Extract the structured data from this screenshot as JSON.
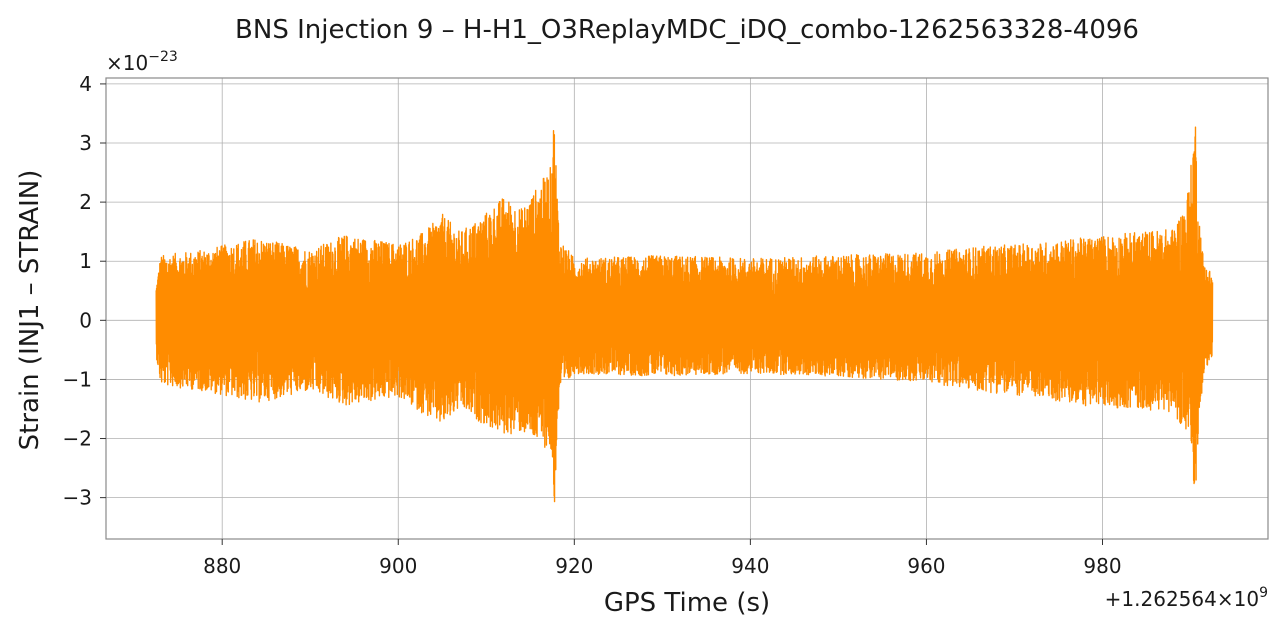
{
  "chart_data": {
    "type": "line",
    "title": "BNS Injection 9 – H-H1_O3ReplayMDC_iDQ_combo-1262563328-4096",
    "xlabel": "GPS Time (s)",
    "ylabel": "Strain (INJ1 – STRAIN)",
    "x_offset_label": "+1.262564×10",
    "x_offset_exponent": "9",
    "y_scale_label": "×10",
    "y_scale_exponent": "−23",
    "xlim": [
      866.8,
      998.8
    ],
    "ylim": [
      -3.7,
      4.1
    ],
    "x_ticks": [
      880,
      900,
      920,
      940,
      960,
      980
    ],
    "x_tick_labels": [
      "880",
      "900",
      "920",
      "940",
      "960",
      "980"
    ],
    "y_ticks": [
      -3,
      -2,
      -1,
      0,
      1,
      2,
      3,
      4
    ],
    "y_tick_labels": [
      "−3",
      "−2",
      "−1",
      "0",
      "1",
      "2",
      "3",
      "4"
    ],
    "grid": true,
    "line_color": "#ff8c00",
    "series": [
      {
        "x_range": [
          872.5,
          992.5
        ],
        "envelope_upper": [
          [
            872.5,
            0.6
          ],
          [
            873,
            1.1
          ],
          [
            878,
            1.2
          ],
          [
            884,
            1.4
          ],
          [
            890,
            1.2
          ],
          [
            894,
            1.45
          ],
          [
            900,
            1.3
          ],
          [
            903,
            1.5
          ],
          [
            905,
            1.8
          ],
          [
            907,
            1.5
          ],
          [
            909,
            1.7
          ],
          [
            912,
            2.1
          ],
          [
            914,
            1.9
          ],
          [
            916,
            2.3
          ],
          [
            917.3,
            2.6
          ],
          [
            917.7,
            3.5
          ],
          [
            918.3,
            1.4
          ],
          [
            920,
            1.05
          ],
          [
            930,
            1.1
          ],
          [
            940,
            1.05
          ],
          [
            950,
            1.1
          ],
          [
            960,
            1.15
          ],
          [
            966,
            1.25
          ],
          [
            972,
            1.3
          ],
          [
            978,
            1.4
          ],
          [
            984,
            1.5
          ],
          [
            988,
            1.55
          ],
          [
            989.5,
            2.0
          ],
          [
            990.2,
            2.8
          ],
          [
            990.5,
            3.7
          ],
          [
            990.9,
            1.9
          ],
          [
            991.5,
            1.0
          ],
          [
            992.5,
            0.8
          ]
        ],
        "envelope_lower": [
          [
            872.5,
            -0.6
          ],
          [
            873,
            -1.1
          ],
          [
            878,
            -1.2
          ],
          [
            884,
            -1.4
          ],
          [
            890,
            -1.2
          ],
          [
            894,
            -1.45
          ],
          [
            900,
            -1.3
          ],
          [
            903,
            -1.6
          ],
          [
            905,
            -1.8
          ],
          [
            907,
            -1.5
          ],
          [
            909,
            -1.7
          ],
          [
            912,
            -1.95
          ],
          [
            914,
            -1.9
          ],
          [
            916,
            -2.1
          ],
          [
            917.3,
            -2.2
          ],
          [
            917.7,
            -3.3
          ],
          [
            918.3,
            -1.3
          ],
          [
            920,
            -0.9
          ],
          [
            930,
            -0.95
          ],
          [
            940,
            -0.9
          ],
          [
            950,
            -0.95
          ],
          [
            960,
            -1.05
          ],
          [
            966,
            -1.2
          ],
          [
            972,
            -1.3
          ],
          [
            978,
            -1.45
          ],
          [
            984,
            -1.5
          ],
          [
            988,
            -1.55
          ],
          [
            989.5,
            -1.9
          ],
          [
            990.2,
            -2.5
          ],
          [
            990.5,
            -3.3
          ],
          [
            990.9,
            -1.8
          ],
          [
            991.5,
            -0.9
          ],
          [
            992.5,
            -0.6
          ]
        ]
      }
    ]
  }
}
